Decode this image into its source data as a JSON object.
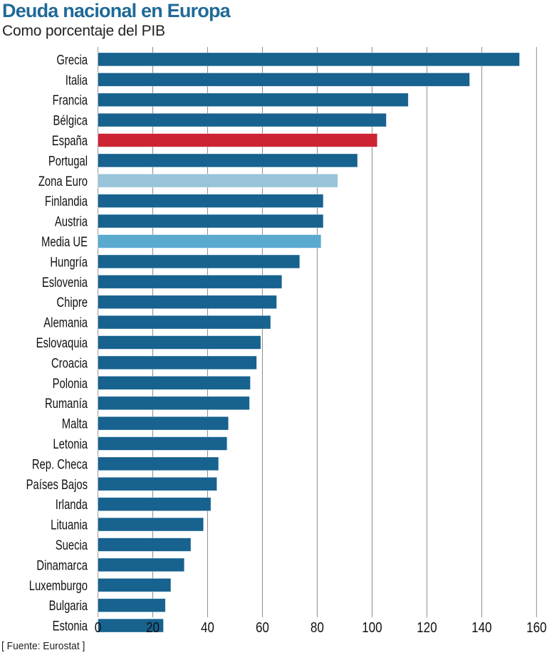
{
  "header": {
    "title": "Deuda nacional en Europa",
    "subtitle": "Como porcentaje del PIB"
  },
  "footer": {
    "source": "[ Fuente: Eurostat ]"
  },
  "colors": {
    "default": "#17628f",
    "highlight_spain": "#cc2433",
    "eurozone": "#98c4da",
    "eu_average": "#5aa9cf",
    "title": "#1f6a98",
    "gridline": "#8a8a8a"
  },
  "chart_data": {
    "type": "bar",
    "orientation": "horizontal",
    "title": "Deuda nacional en Europa",
    "subtitle": "Como porcentaje del PIB",
    "xlabel": "",
    "ylabel": "",
    "xlim": [
      0,
      160
    ],
    "xticks": [
      0,
      20,
      40,
      60,
      80,
      100,
      120,
      140,
      160
    ],
    "grid": true,
    "categories": [
      "Grecia",
      "Italia",
      "Francia",
      "Bélgica",
      "España",
      "Portugal",
      "Zona Euro",
      "Finlandia",
      "Austria",
      "Media UE",
      "Hungría",
      "Eslovenia",
      "Chipre",
      "Alemania",
      "Eslovaquia",
      "Croacia",
      "Polonia",
      "Rumanía",
      "Malta",
      "Letonia",
      "Rep. Checa",
      "Países Bajos",
      "Irlanda",
      "Lituania",
      "Suecia",
      "Dinamarca",
      "Luxemburgo",
      "Bulgaria",
      "Estonia"
    ],
    "values": [
      153.8,
      135.6,
      113.2,
      105.2,
      101.9,
      94.7,
      87.5,
      82.2,
      82.2,
      81.4,
      73.6,
      67.1,
      65.2,
      63.0,
      59.4,
      57.9,
      55.6,
      55.3,
      47.6,
      47.1,
      44.0,
      43.4,
      41.2,
      38.5,
      33.9,
      31.5,
      26.6,
      24.6,
      23.9
    ],
    "bar_color_keys": [
      "default",
      "default",
      "default",
      "default",
      "highlight_spain",
      "default",
      "eurozone",
      "default",
      "default",
      "eu_average",
      "default",
      "default",
      "default",
      "default",
      "default",
      "default",
      "default",
      "default",
      "default",
      "default",
      "default",
      "default",
      "default",
      "default",
      "default",
      "default",
      "default",
      "default",
      "default"
    ],
    "source": "Eurostat"
  }
}
